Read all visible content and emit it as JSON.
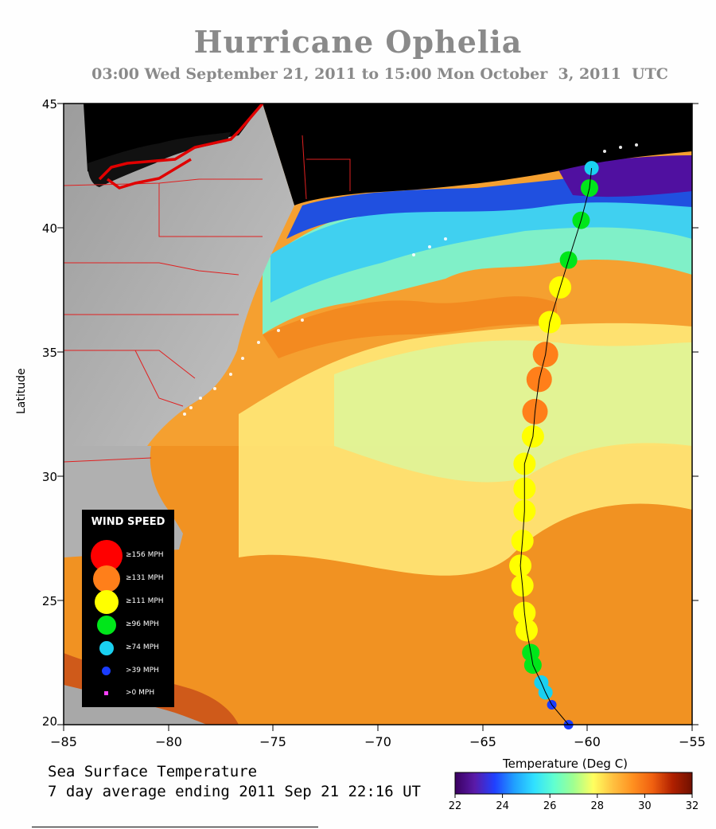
{
  "title": "Hurricane Ophelia",
  "subtitle": "03:00 Wed September 21, 2011 to 15:00 Mon October  3, 2011  UTC",
  "axes": {
    "ylabel": "Latitude",
    "yticks": [
      "45",
      "40",
      "35",
      "30",
      "25",
      "20"
    ],
    "xticks": [
      "−85",
      "−80",
      "−75",
      "−70",
      "−65",
      "−60",
      "−55"
    ],
    "lon_range": [
      -85,
      -55
    ],
    "lat_range": [
      20,
      45
    ]
  },
  "footer": {
    "line1": "Sea Surface Temperature",
    "line2": "7 day average ending 2011 Sep 21 22:16 UT"
  },
  "colorbar": {
    "title": "Temperature (Deg C)",
    "ticks": [
      "22",
      "24",
      "26",
      "28",
      "30",
      "32"
    ],
    "range": [
      22,
      32
    ],
    "colors": [
      "#3a0060",
      "#5a1aa8",
      "#2040ff",
      "#20a0ff",
      "#30e0ff",
      "#60ffd0",
      "#a0ff90",
      "#ffff60",
      "#ffc040",
      "#ff9020",
      "#f06010",
      "#b02000",
      "#701000"
    ]
  },
  "legend": {
    "title": "WIND SPEED",
    "items": [
      {
        "label": "≥156 MPH",
        "color": "#ff0000"
      },
      {
        "label": "≥131 MPH",
        "color": "#ff7f1a"
      },
      {
        "label": "≥111 MPH",
        "color": "#ffff00"
      },
      {
        "label": "≥96 MPH",
        "color": "#00e61a"
      },
      {
        "label": "≥74 MPH",
        "color": "#1ad0f0"
      },
      {
        "label": ">39 MPH",
        "color": "#1a3cff"
      },
      {
        "label": ">0 MPH",
        "color": "#ff40ff"
      }
    ]
  },
  "track": [
    {
      "lon": -60.9,
      "lat": 20.0,
      "cat": ">39 MPH"
    },
    {
      "lon": -61.7,
      "lat": 20.8,
      "cat": ">39 MPH"
    },
    {
      "lon": -62.0,
      "lat": 21.3,
      "cat": "≥74 MPH"
    },
    {
      "lon": -62.2,
      "lat": 21.7,
      "cat": "≥74 MPH"
    },
    {
      "lon": -62.6,
      "lat": 22.4,
      "cat": "≥96 MPH"
    },
    {
      "lon": -62.7,
      "lat": 22.9,
      "cat": "≥96 MPH"
    },
    {
      "lon": -62.9,
      "lat": 23.8,
      "cat": "≥111 MPH"
    },
    {
      "lon": -63.0,
      "lat": 24.5,
      "cat": "≥111 MPH"
    },
    {
      "lon": -63.1,
      "lat": 25.6,
      "cat": "≥111 MPH"
    },
    {
      "lon": -63.2,
      "lat": 26.4,
      "cat": "≥111 MPH"
    },
    {
      "lon": -63.1,
      "lat": 27.4,
      "cat": "≥111 MPH"
    },
    {
      "lon": -63.0,
      "lat": 28.6,
      "cat": "≥111 MPH"
    },
    {
      "lon": -63.0,
      "lat": 29.5,
      "cat": "≥111 MPH"
    },
    {
      "lon": -63.0,
      "lat": 30.5,
      "cat": "≥111 MPH"
    },
    {
      "lon": -62.6,
      "lat": 31.6,
      "cat": "≥111 MPH"
    },
    {
      "lon": -62.5,
      "lat": 32.6,
      "cat": "≥131 MPH"
    },
    {
      "lon": -62.3,
      "lat": 33.9,
      "cat": "≥131 MPH"
    },
    {
      "lon": -62.0,
      "lat": 34.9,
      "cat": "≥131 MPH"
    },
    {
      "lon": -61.8,
      "lat": 36.2,
      "cat": "≥111 MPH"
    },
    {
      "lon": -61.3,
      "lat": 37.6,
      "cat": "≥111 MPH"
    },
    {
      "lon": -60.9,
      "lat": 38.7,
      "cat": "≥96 MPH"
    },
    {
      "lon": -60.3,
      "lat": 40.3,
      "cat": "≥96 MPH"
    },
    {
      "lon": -59.9,
      "lat": 41.6,
      "cat": "≥96 MPH"
    },
    {
      "lon": -59.8,
      "lat": 42.4,
      "cat": "≥74 MPH"
    }
  ]
}
